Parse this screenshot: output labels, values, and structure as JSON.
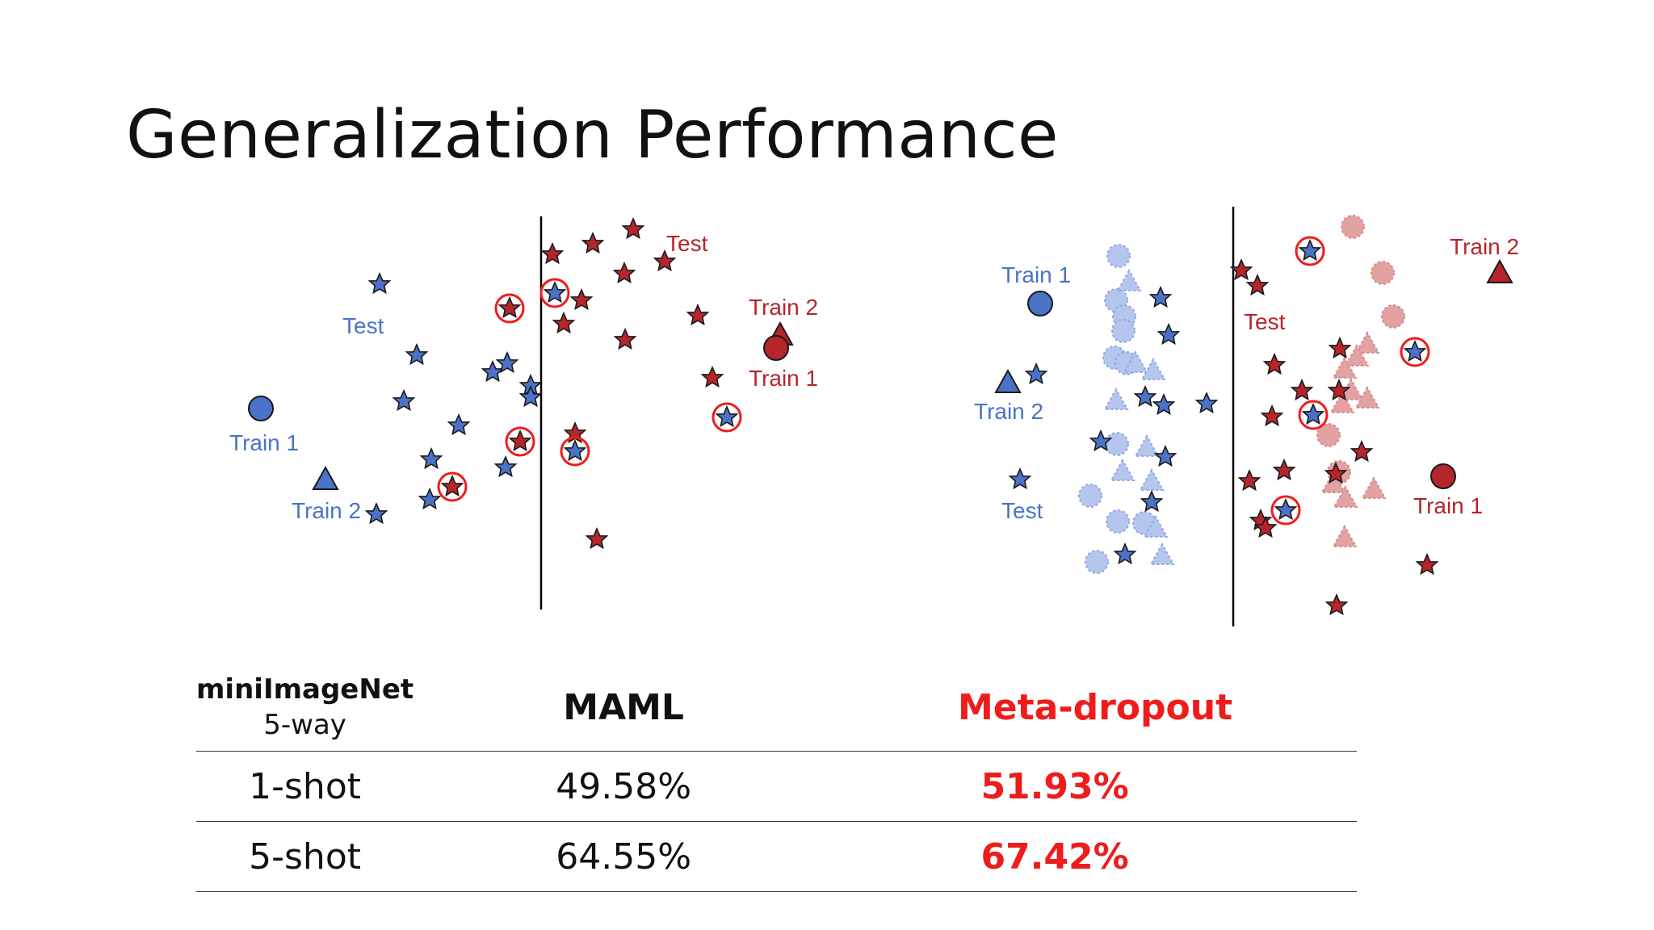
{
  "slide": {
    "title": "Generalization Performance"
  },
  "left_plot": {
    "labels": {
      "test_blue": "Test",
      "train1_blue": "Train 1",
      "train2_blue": "Train 2",
      "test_red": "Test",
      "train2_red": "Train 2",
      "train1_red": "Train 1"
    }
  },
  "right_plot": {
    "labels": {
      "train1_blue": "Train 1",
      "train2_blue": "Train 2",
      "test_blue": "Test",
      "test_red": "Test",
      "train2_red": "Train 2",
      "train1_red": "Train 1"
    }
  },
  "colors": {
    "blue": "#4a72c8",
    "red": "#b5252a",
    "highlight": "#ee1c1c"
  },
  "table": {
    "header": {
      "dataset": "miniImageNet",
      "setting": "5-way",
      "maml": "MAML",
      "meta": "Meta-dropout"
    },
    "rows": [
      {
        "shot": "1-shot",
        "maml": "49.58%",
        "meta": "51.93%"
      },
      {
        "shot": "5-shot",
        "maml": "64.55%",
        "meta": "67.42%"
      }
    ]
  }
}
